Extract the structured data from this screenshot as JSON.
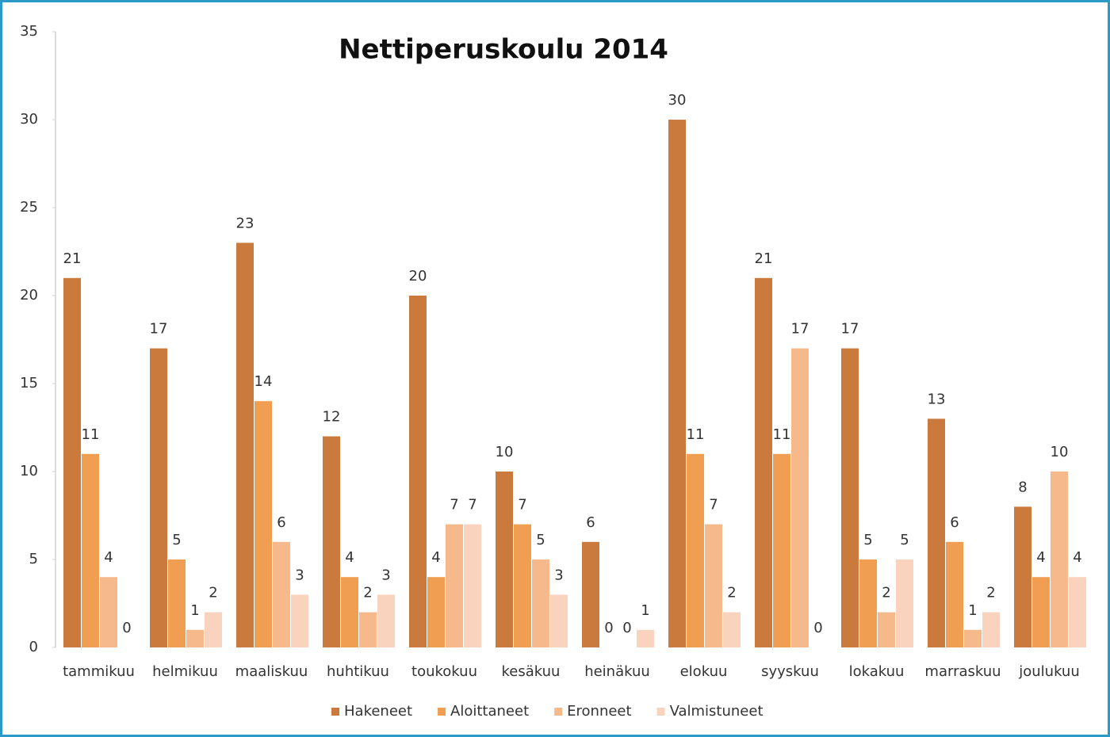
{
  "chart_data": {
    "type": "bar",
    "title": "Nettiperuskoulu 2014",
    "categories": [
      "tammikuu",
      "helmikuu",
      "maaliskuu",
      "huhtikuu",
      "toukokuu",
      "kesäkuu",
      "heinäkuu",
      "elokuu",
      "syyskuu",
      "lokakuu",
      "marraskuu",
      "joulukuu"
    ],
    "series": [
      {
        "name": "Hakeneet",
        "color": "#c97a3c",
        "values": [
          21,
          17,
          23,
          12,
          20,
          10,
          6,
          30,
          21,
          17,
          13,
          8
        ]
      },
      {
        "name": "Aloittaneet",
        "color": "#f09e52",
        "values": [
          11,
          5,
          14,
          4,
          4,
          7,
          0,
          11,
          11,
          5,
          6,
          4
        ]
      },
      {
        "name": "Eronneet",
        "color": "#f6b98c",
        "values": [
          4,
          1,
          6,
          2,
          7,
          5,
          0,
          7,
          17,
          2,
          1,
          10
        ]
      },
      {
        "name": "Valmistuneet",
        "color": "#f9d3be",
        "values": [
          0,
          2,
          3,
          3,
          7,
          3,
          1,
          2,
          0,
          5,
          2,
          4
        ]
      }
    ],
    "ylim": [
      0,
      35
    ],
    "yticks": [
      0,
      5,
      10,
      15,
      20,
      25,
      30,
      35
    ],
    "grid": false,
    "legend": "bottom"
  }
}
